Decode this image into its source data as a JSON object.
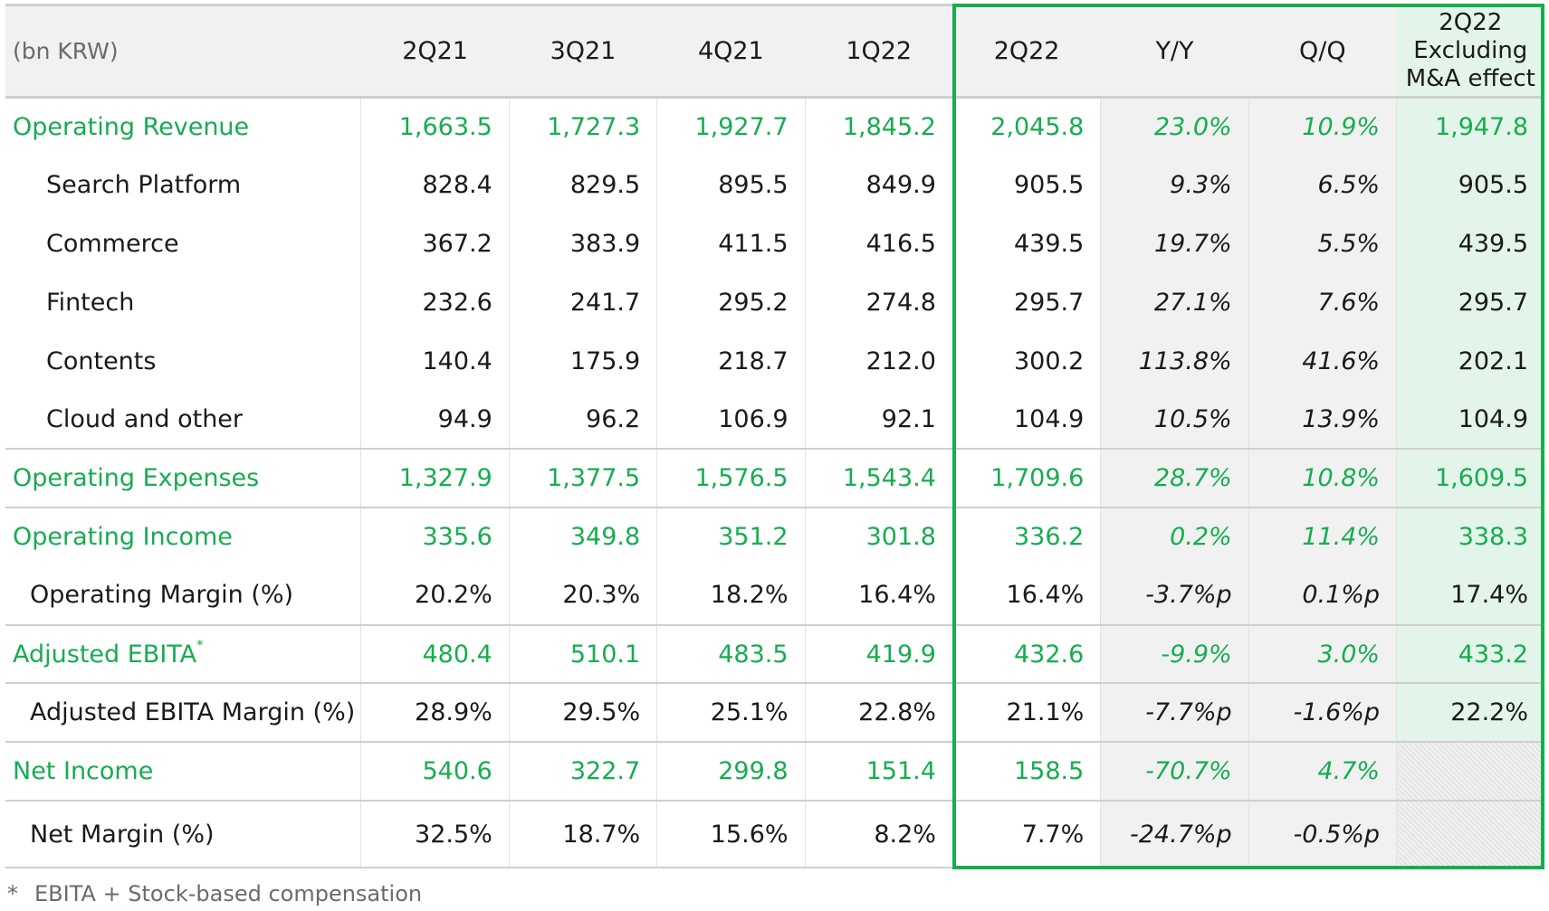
{
  "header": {
    "unit_label": "(bn KRW)",
    "quarters": [
      "2Q21",
      "3Q21",
      "4Q21",
      "1Q22",
      "2Q22"
    ],
    "yy": "Y/Y",
    "qq": "Q/Q",
    "excl_line1": "2Q22",
    "excl_line2": "Excluding",
    "excl_line3": "M&A effect"
  },
  "rows": [
    {
      "label": "Operating Revenue",
      "values": [
        "1,663.5",
        "1,727.3",
        "1,927.7",
        "1,845.2",
        "2,045.8",
        "23.0%",
        "10.9%",
        "1,947.8"
      ]
    },
    {
      "label": "Search Platform",
      "values": [
        "828.4",
        "829.5",
        "895.5",
        "849.9",
        "905.5",
        "9.3%",
        "6.5%",
        "905.5"
      ]
    },
    {
      "label": "Commerce",
      "values": [
        "367.2",
        "383.9",
        "411.5",
        "416.5",
        "439.5",
        "19.7%",
        "5.5%",
        "439.5"
      ]
    },
    {
      "label": "Fintech",
      "values": [
        "232.6",
        "241.7",
        "295.2",
        "274.8",
        "295.7",
        "27.1%",
        "7.6%",
        "295.7"
      ]
    },
    {
      "label": "Contents",
      "values": [
        "140.4",
        "175.9",
        "218.7",
        "212.0",
        "300.2",
        "113.8%",
        "41.6%",
        "202.1"
      ]
    },
    {
      "label": "Cloud and other",
      "values": [
        "94.9",
        "96.2",
        "106.9",
        "92.1",
        "104.9",
        "10.5%",
        "13.9%",
        "104.9"
      ]
    },
    {
      "label": "Operating Expenses",
      "values": [
        "1,327.9",
        "1,377.5",
        "1,576.5",
        "1,543.4",
        "1,709.6",
        "28.7%",
        "10.8%",
        "1,609.5"
      ]
    },
    {
      "label": "Operating Income",
      "values": [
        "335.6",
        "349.8",
        "351.2",
        "301.8",
        "336.2",
        "0.2%",
        "11.4%",
        "338.3"
      ]
    },
    {
      "label": "Operating Margin (%)",
      "values": [
        "20.2%",
        "20.3%",
        "18.2%",
        "16.4%",
        "16.4%",
        "-3.7%p",
        "0.1%p",
        "17.4%"
      ]
    },
    {
      "label": "Adjusted EBITA",
      "footnote_mark": "*",
      "values": [
        "480.4",
        "510.1",
        "483.5",
        "419.9",
        "432.6",
        "-9.9%",
        "3.0%",
        "433.2"
      ]
    },
    {
      "label": "Adjusted EBITA Margin (%)",
      "values": [
        "28.9%",
        "29.5%",
        "25.1%",
        "22.8%",
        "21.1%",
        "-7.7%p",
        "-1.6%p",
        "22.2%"
      ]
    },
    {
      "label": "Net Income",
      "values": [
        "540.6",
        "322.7",
        "299.8",
        "151.4",
        "158.5",
        "-70.7%",
        "4.7%",
        ""
      ]
    },
    {
      "label": "Net Margin (%)",
      "values": [
        "32.5%",
        "18.7%",
        "15.6%",
        "8.2%",
        "7.7%",
        "-24.7%p",
        "-0.5%p",
        ""
      ]
    }
  ],
  "footnote": {
    "mark": "*",
    "text": "EBITA + Stock-based compensation"
  },
  "colors": {
    "accent_green": "#16ad4f",
    "highlight_border": "#17ad4f",
    "excl_column_bg": "#e3f4ea",
    "header_bg": "#f1f1f1"
  }
}
